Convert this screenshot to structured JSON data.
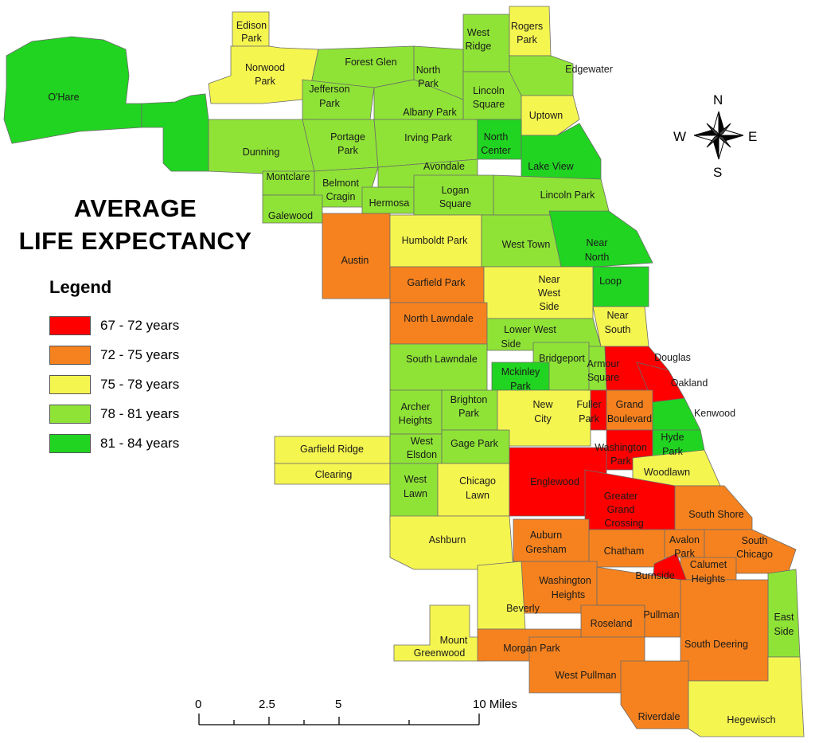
{
  "title": {
    "line1": "AVERAGE",
    "line2": "LIFE EXPECTANCY"
  },
  "legend": {
    "heading": "Legend",
    "items": [
      {
        "label": "67 - 72 years",
        "color": "#ff0000"
      },
      {
        "label": "72 - 75 years",
        "color": "#f5821f"
      },
      {
        "label": "75 - 78 years",
        "color": "#f5f550"
      },
      {
        "label": "78 - 81 years",
        "color": "#8fe336"
      },
      {
        "label": "81 - 84 years",
        "color": "#21d421"
      }
    ]
  },
  "compass": {
    "n": "N",
    "s": "S",
    "e": "E",
    "w": "W"
  },
  "scale": {
    "t0": "0",
    "t1": "2.5",
    "t2": "5",
    "t3": "10 Miles"
  },
  "areas": {
    "ohare": "O'Hare",
    "edison_a": "Edison",
    "edison_b": "Park",
    "norwood_a": "Norwood",
    "norwood_b": "Park",
    "forest_glen": "Forest Glen",
    "north_park_a": "North",
    "north_park_b": "Park",
    "west_ridge_a": "West",
    "west_ridge_b": "Ridge",
    "rogers_park_a": "Rogers",
    "rogers_park_b": "Park",
    "edgewater": "Edgewater",
    "jefferson_a": "Jefferson",
    "jefferson_b": "Park",
    "albany_park": "Albany Park",
    "lincoln_sq_a": "Lincoln",
    "lincoln_sq_b": "Square",
    "uptown": "Uptown",
    "dunning": "Dunning",
    "portage_a": "Portage",
    "portage_b": "Park",
    "irving_park": "Irving Park",
    "north_center_a": "North",
    "north_center_b": "Center",
    "lake_view": "Lake View",
    "montclare": "Montclare",
    "belmont_a": "Belmont",
    "belmont_b": "Cragin",
    "hermosa": "Hermosa",
    "avondale": "Avondale",
    "logan_a": "Logan",
    "logan_b": "Square",
    "lincoln_park": "Lincoln Park",
    "galewood": "Galewood",
    "austin": "Austin",
    "humboldt_park": "Humboldt Park",
    "west_town": "West Town",
    "near_north_a": "Near",
    "near_north_b": "North",
    "loop": "Loop",
    "garfield_park": "Garfield Park",
    "near_west_a": "Near",
    "near_west_b": "West",
    "near_west_c": "Side",
    "north_lawndale": "North Lawndale",
    "near_south_a": "Near",
    "near_south_b": "South",
    "lower_west_a": "Lower West",
    "lower_west_b": "Side",
    "south_lawndale": "South Lawndale",
    "bridgeport": "Bridgeport",
    "armour_a": "Armour",
    "armour_b": "Square",
    "douglas": "Douglas",
    "oakland": "Oakland",
    "mckinley_a": "Mckinley",
    "mckinley_b": "Park",
    "archer_a": "Archer",
    "archer_b": "Heights",
    "brighton_a": "Brighton",
    "brighton_b": "Park",
    "new_city_a": "New",
    "new_city_b": "City",
    "fuller_a": "Fuller",
    "fuller_b": "Park",
    "grand_blvd_a": "Grand",
    "grand_blvd_b": "Boulevard",
    "kenwood": "Kenwood",
    "garfield_ridge": "Garfield Ridge",
    "west_elsdon_a": "West",
    "west_elsdon_b": "Elsdon",
    "gage_park": "Gage Park",
    "washington_park_a": "Washington",
    "washington_park_b": "Park",
    "hyde_park_a": "Hyde",
    "hyde_park_b": "Park",
    "clearing": "Clearing",
    "west_lawn_a": "West",
    "west_lawn_b": "Lawn",
    "chicago_lawn_a": "Chicago",
    "chicago_lawn_b": "Lawn",
    "englewood": "Englewood",
    "woodlawn": "Woodlawn",
    "ggc_a": "Greater",
    "ggc_b": "Grand",
    "ggc_c": "Crossing",
    "south_shore": "South Shore",
    "ashburn": "Ashburn",
    "auburn_a": "Auburn",
    "auburn_b": "Gresham",
    "chatham": "Chatham",
    "avalon_a": "Avalon",
    "avalon_b": "Park",
    "south_chicago_a": "South",
    "south_chicago_b": "Chicago",
    "calumet_a": "Calumet",
    "calumet_b": "Heights",
    "burnside": "Burnside",
    "wash_heights_a": "Washington",
    "wash_heights_b": "Heights",
    "beverly": "Beverly",
    "pullman": "Pullman",
    "roseland": "Roseland",
    "east_side_a": "East",
    "east_side_b": "Side",
    "mount_gw_a": "Mount",
    "mount_gw_b": "Greenwood",
    "morgan_park": "Morgan Park",
    "south_deering": "South Deering",
    "west_pullman": "West Pullman",
    "riverdale": "Riverdale",
    "hegewisch": "Hegewisch"
  }
}
